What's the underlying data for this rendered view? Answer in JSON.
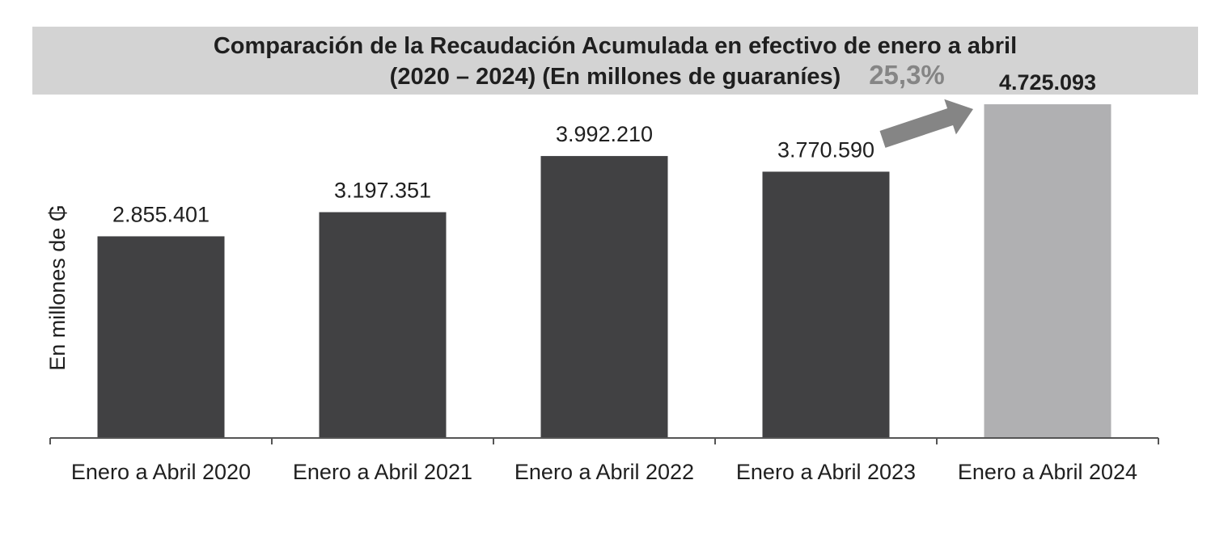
{
  "chart_data": {
    "type": "bar",
    "title": "Comparación de la Recaudación Acumulada en efectivo de enero a abril",
    "subtitle": "(2020 – 2024) (En millones de guaraníes)",
    "ylabel": "En millones de ₲",
    "xlabel": "",
    "categories": [
      "Enero a Abril 2020",
      "Enero a Abril 2021",
      "Enero a Abril 2022",
      "Enero a Abril 2023",
      "Enero a Abril 2024"
    ],
    "values": [
      2855401,
      3197351,
      3992210,
      3770590,
      4725093
    ],
    "value_labels": [
      "2.855.401",
      "3.197.351",
      "3.992.210",
      "3.770.590",
      "4.725.093"
    ],
    "highlight_index": 4,
    "ylim": [
      0,
      5000000
    ],
    "grid": false,
    "annotation": {
      "text": "25,3%",
      "from_index": 3,
      "to_index": 4
    },
    "colors": {
      "bar": "#414143",
      "highlight_bar": "#b0b0b2",
      "annotation": "#858585",
      "axis": "#555555",
      "title_band": "#d3d3d3"
    }
  }
}
